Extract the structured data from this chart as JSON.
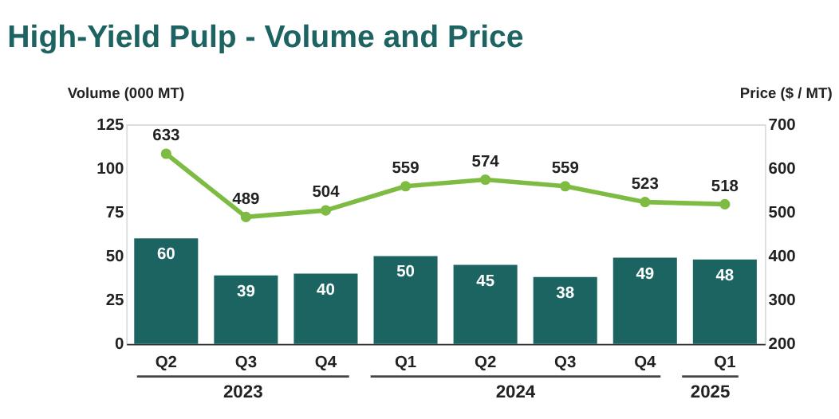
{
  "chart_data": {
    "type": "bar",
    "title": "High-Yield Pulp - Volume and Price",
    "ylabel": "Volume (000 MT)",
    "y2label": "Price ($ / MT)",
    "categories": [
      "Q2",
      "Q3",
      "Q4",
      "Q1",
      "Q2",
      "Q3",
      "Q4",
      "Q1"
    ],
    "series": [
      {
        "color": "#1b6462",
        "values": [
          60,
          39,
          40,
          50,
          45,
          38,
          49,
          48
        ]
      },
      {
        "type": "line",
        "axis": "y2",
        "color": "#7dbb42",
        "marker": "circle",
        "values": [
          633,
          489,
          504,
          559,
          574,
          559,
          523,
          518
        ]
      }
    ],
    "ylim": [
      0,
      125
    ],
    "yticks": [
      0,
      25,
      50,
      75,
      100,
      125
    ],
    "y2lim": [
      200,
      700
    ],
    "y2ticks": [
      200,
      300,
      400,
      500,
      600,
      700
    ],
    "data_labels": true,
    "grid": false,
    "annotations": [
      "2023",
      "2024",
      "2025"
    ]
  }
}
